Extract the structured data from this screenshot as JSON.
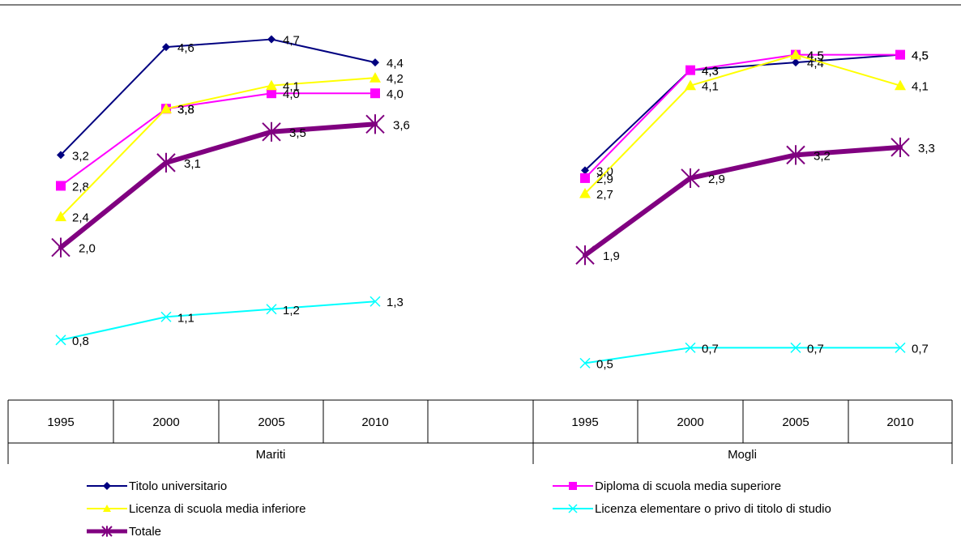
{
  "chart_data": {
    "type": "line",
    "groups": [
      {
        "label": "Mariti",
        "x": [
          "1995",
          "2000",
          "2005",
          "2010"
        ]
      },
      {
        "label": "Mogli",
        "x": [
          "1995",
          "2000",
          "2005",
          "2010"
        ]
      }
    ],
    "series": [
      {
        "name": "Titolo universitario",
        "color": "#000080",
        "marker": "diamond",
        "values": {
          "Mariti": [
            3.2,
            4.6,
            4.7,
            4.4
          ],
          "Mogli": [
            3.0,
            4.3,
            4.4,
            4.5
          ]
        },
        "labels": {
          "Mariti": [
            "3,2",
            "4,6",
            "4,7",
            "4,4"
          ],
          "Mogli": [
            "3,0",
            "4,3",
            "4,4",
            "4,5"
          ]
        }
      },
      {
        "name": "Diploma di scuola media superiore",
        "color": "#ff00ff",
        "marker": "square",
        "values": {
          "Mariti": [
            2.8,
            3.8,
            4.0,
            4.0
          ],
          "Mogli": [
            2.9,
            4.3,
            4.5,
            4.5
          ]
        },
        "labels": {
          "Mariti": [
            "2,8",
            "3,8",
            "4,0",
            "4,0"
          ],
          "Mogli": [
            "2,9",
            "4,3",
            "4,5",
            "4,5"
          ]
        }
      },
      {
        "name": "Licenza di scuola media inferiore",
        "color": "#ffff00",
        "marker": "triangle",
        "values": {
          "Mariti": [
            2.4,
            3.8,
            4.1,
            4.2
          ],
          "Mogli": [
            2.7,
            4.1,
            4.5,
            4.1
          ]
        },
        "labels": {
          "Mariti": [
            "2,4",
            "3,8",
            "4,1",
            "4,2"
          ],
          "Mogli": [
            "2,7",
            "4,1",
            "4,5",
            "4,1"
          ]
        }
      },
      {
        "name": "Licenza elementare o privo di titolo di studio",
        "color": "#00ffff",
        "marker": "x",
        "values": {
          "Mariti": [
            0.8,
            1.1,
            1.2,
            1.3
          ],
          "Mogli": [
            0.5,
            0.7,
            0.7,
            0.7
          ]
        },
        "labels": {
          "Mariti": [
            "0,8",
            "1,1",
            "1,2",
            "1,3"
          ],
          "Mogli": [
            "0,5",
            "0,7",
            "0,7",
            "0,7"
          ]
        }
      },
      {
        "name": "Totale",
        "color": "#800080",
        "marker": "star",
        "values": {
          "Mariti": [
            2.0,
            3.1,
            3.5,
            3.6
          ],
          "Mogli": [
            1.9,
            2.9,
            3.2,
            3.3
          ]
        },
        "labels": {
          "Mariti": [
            "2,0",
            "3,1",
            "3,5",
            "3,6"
          ],
          "Mogli": [
            "1,9",
            "2,9",
            "3,2",
            "3,3"
          ]
        }
      }
    ],
    "ylim": [
      0,
      5
    ],
    "grid": false,
    "legend_position": "bottom"
  }
}
